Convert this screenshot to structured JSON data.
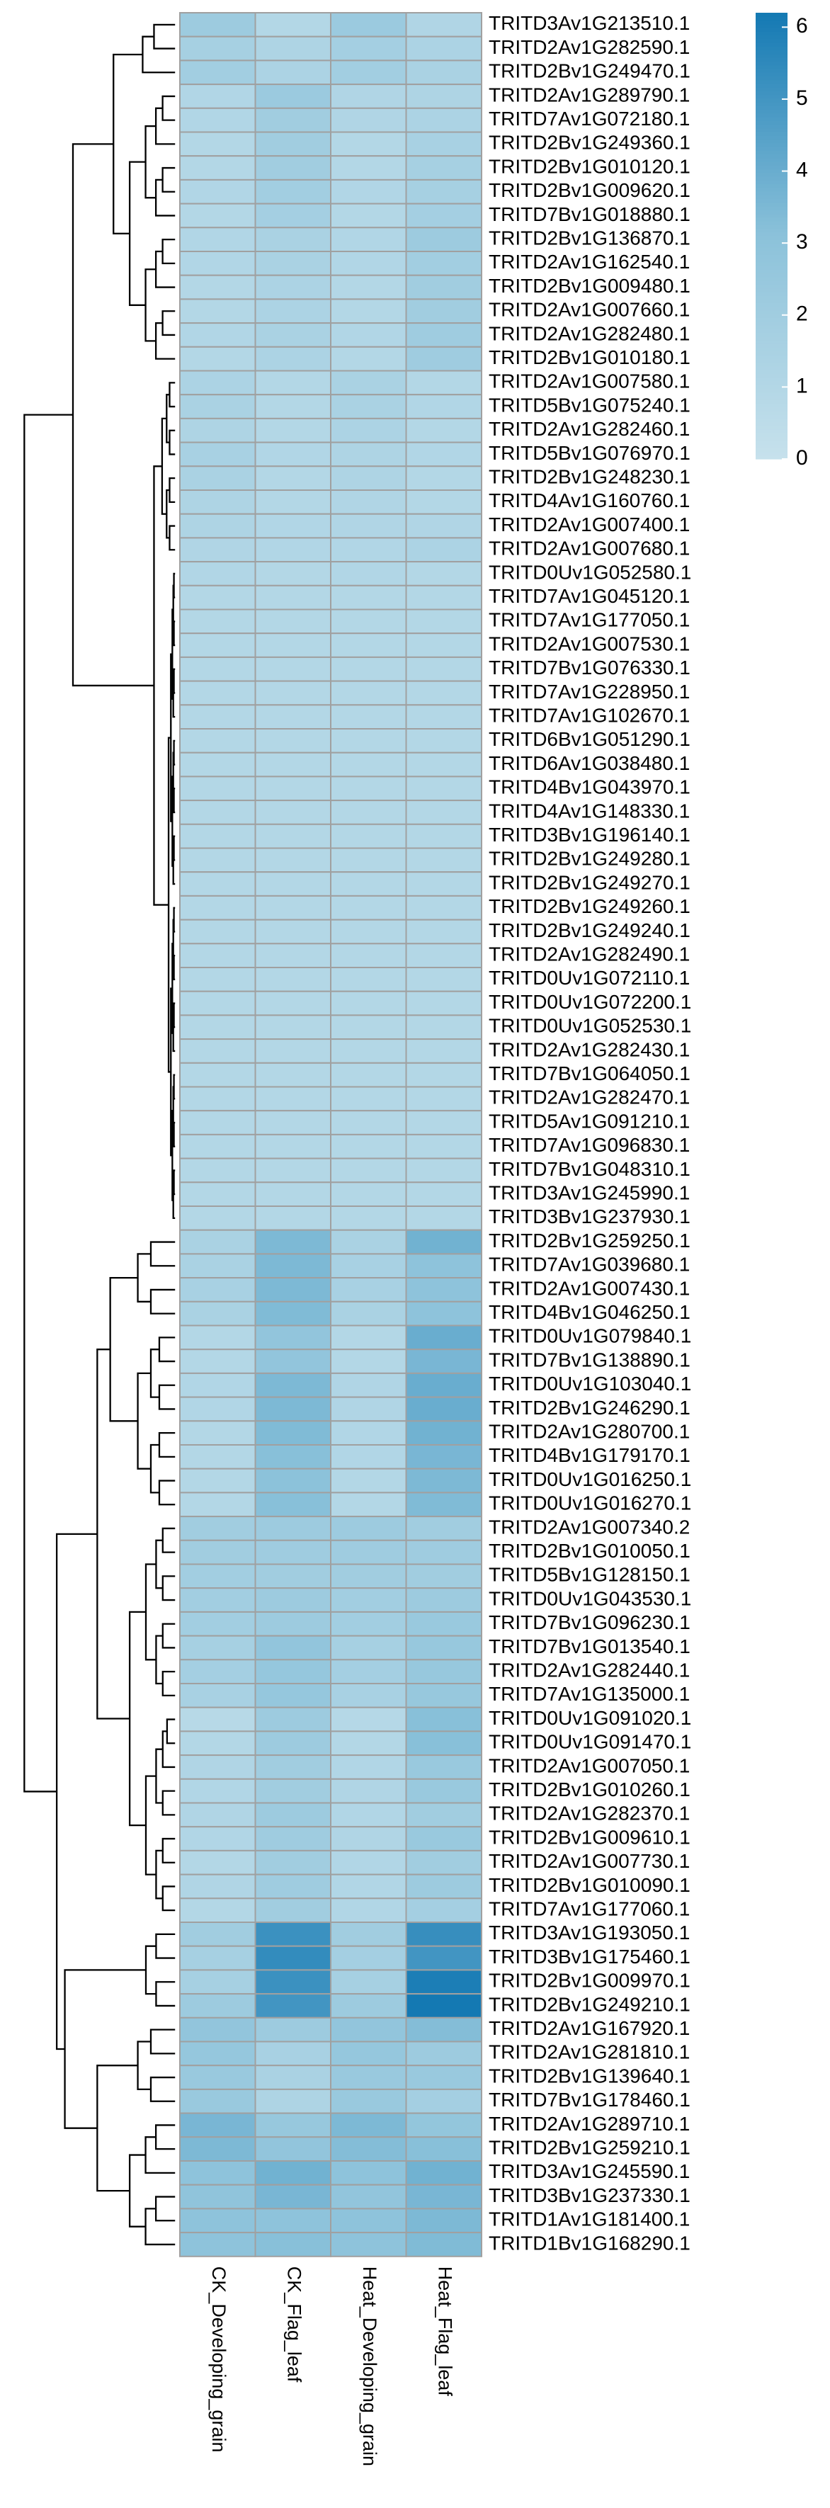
{
  "chart_data": {
    "type": "heatmap",
    "columns": [
      "CK_Developing_grain",
      "CK_Flag_leaf",
      "Heat_Developing_grain",
      "Heat_Flag_leaf"
    ],
    "rows": [
      "TRITD3Av1G213510.1",
      "TRITD2Av1G282590.1",
      "TRITD2Bv1G249470.1",
      "TRITD2Av1G289790.1",
      "TRITD7Av1G072180.1",
      "TRITD2Bv1G249360.1",
      "TRITD2Bv1G010120.1",
      "TRITD2Bv1G009620.1",
      "TRITD7Bv1G018880.1",
      "TRITD2Bv1G136870.1",
      "TRITD2Av1G162540.1",
      "TRITD2Bv1G009480.1",
      "TRITD2Av1G007660.1",
      "TRITD2Av1G282480.1",
      "TRITD2Bv1G010180.1",
      "TRITD2Av1G007580.1",
      "TRITD5Bv1G075240.1",
      "TRITD2Av1G282460.1",
      "TRITD5Bv1G076970.1",
      "TRITD2Bv1G248230.1",
      "TRITD4Av1G160760.1",
      "TRITD2Av1G007400.1",
      "TRITD2Av1G007680.1",
      "TRITD0Uv1G052580.1",
      "TRITD7Av1G045120.1",
      "TRITD7Av1G177050.1",
      "TRITD2Av1G007530.1",
      "TRITD7Bv1G076330.1",
      "TRITD7Av1G228950.1",
      "TRITD7Av1G102670.1",
      "TRITD6Bv1G051290.1",
      "TRITD6Av1G038480.1",
      "TRITD4Bv1G043970.1",
      "TRITD4Av1G148330.1",
      "TRITD3Bv1G196140.1",
      "TRITD2Bv1G249280.1",
      "TRITD2Bv1G249270.1",
      "TRITD2Bv1G249260.1",
      "TRITD2Bv1G249240.1",
      "TRITD2Av1G282490.1",
      "TRITD0Uv1G072110.1",
      "TRITD0Uv1G072200.1",
      "TRITD0Uv1G052530.1",
      "TRITD2Av1G282430.1",
      "TRITD7Bv1G064050.1",
      "TRITD2Av1G282470.1",
      "TRITD5Av1G091210.1",
      "TRITD7Av1G096830.1",
      "TRITD7Bv1G048310.1",
      "TRITD3Av1G245990.1",
      "TRITD3Bv1G237930.1",
      "TRITD2Bv1G259250.1",
      "TRITD7Av1G039680.1",
      "TRITD2Av1G007430.1",
      "TRITD4Bv1G046250.1",
      "TRITD0Uv1G079840.1",
      "TRITD7Bv1G138890.1",
      "TRITD0Uv1G103040.1",
      "TRITD2Bv1G246290.1",
      "TRITD2Av1G280700.1",
      "TRITD4Bv1G179170.1",
      "TRITD0Uv1G016250.1",
      "TRITD0Uv1G016270.1",
      "TRITD2Av1G007340.2",
      "TRITD2Bv1G010050.1",
      "TRITD5Bv1G128150.1",
      "TRITD0Uv1G043530.1",
      "TRITD7Bv1G096230.1",
      "TRITD7Bv1G013540.1",
      "TRITD2Av1G282440.1",
      "TRITD7Av1G135000.1",
      "TRITD0Uv1G091020.1",
      "TRITD0Uv1G091470.1",
      "TRITD2Av1G007050.1",
      "TRITD2Bv1G010260.1",
      "TRITD2Av1G282370.1",
      "TRITD2Bv1G009610.1",
      "TRITD2Av1G007730.1",
      "TRITD2Bv1G010090.1",
      "TRITD7Av1G177060.1",
      "TRITD3Av1G193050.1",
      "TRITD3Bv1G175460.1",
      "TRITD2Bv1G009970.1",
      "TRITD2Bv1G249210.1",
      "TRITD2Av1G167920.1",
      "TRITD2Av1G281810.1",
      "TRITD2Bv1G139640.1",
      "TRITD7Bv1G178460.1",
      "TRITD2Av1G289710.1",
      "TRITD2Bv1G259210.1",
      "TRITD3Av1G245590.1",
      "TRITD3Bv1G237330.1",
      "TRITD1Av1G181400.1",
      "TRITD1Bv1G168290.1"
    ],
    "values": [
      [
        2.2,
        1.0,
        2.3,
        1.2
      ],
      [
        1.7,
        1.3,
        1.8,
        1.4
      ],
      [
        1.9,
        1.4,
        1.9,
        1.5
      ],
      [
        1.1,
        2.3,
        1.2,
        1.3
      ],
      [
        1.1,
        2.0,
        1.2,
        1.4
      ],
      [
        1.0,
        2.0,
        1.0,
        1.6
      ],
      [
        1.0,
        2.0,
        1.0,
        1.7
      ],
      [
        1.1,
        1.9,
        1.1,
        1.7
      ],
      [
        1.0,
        1.8,
        1.0,
        1.8
      ],
      [
        1.1,
        1.5,
        1.1,
        2.2
      ],
      [
        1.1,
        1.5,
        1.1,
        1.9
      ],
      [
        1.0,
        1.4,
        1.0,
        2.0
      ],
      [
        1.0,
        1.4,
        1.0,
        2.0
      ],
      [
        1.1,
        1.5,
        1.1,
        2.1
      ],
      [
        1.0,
        1.4,
        1.0,
        2.1
      ],
      [
        1.4,
        1.0,
        1.5,
        1.0
      ],
      [
        1.5,
        1.0,
        1.5,
        1.1
      ],
      [
        1.3,
        1.0,
        1.4,
        1.0
      ],
      [
        1.6,
        1.1,
        1.3,
        1.1
      ],
      [
        1.5,
        1.0,
        1.3,
        1.0
      ],
      [
        1.3,
        1.0,
        1.2,
        1.0
      ],
      [
        1.3,
        1.1,
        1.2,
        1.2
      ],
      [
        1.2,
        1.1,
        1.1,
        1.4
      ],
      [
        1.1,
        1.0,
        1.1,
        1.0
      ],
      [
        1.0,
        1.0,
        1.0,
        1.0
      ],
      [
        1.0,
        1.0,
        1.0,
        1.0
      ],
      [
        1.0,
        1.0,
        1.0,
        1.0
      ],
      [
        1.0,
        1.0,
        1.0,
        1.0
      ],
      [
        1.0,
        1.0,
        1.0,
        1.0
      ],
      [
        1.0,
        1.0,
        1.0,
        1.0
      ],
      [
        1.0,
        1.0,
        1.0,
        1.0
      ],
      [
        1.0,
        1.0,
        1.0,
        1.0
      ],
      [
        1.0,
        1.0,
        1.0,
        1.0
      ],
      [
        1.0,
        1.0,
        1.0,
        1.0
      ],
      [
        1.0,
        1.0,
        1.0,
        1.0
      ],
      [
        1.0,
        1.0,
        1.0,
        1.0
      ],
      [
        1.0,
        1.0,
        1.0,
        1.0
      ],
      [
        1.0,
        1.0,
        1.0,
        1.0
      ],
      [
        1.0,
        1.0,
        1.0,
        1.0
      ],
      [
        1.0,
        1.0,
        1.0,
        1.0
      ],
      [
        1.0,
        1.0,
        1.0,
        1.0
      ],
      [
        1.0,
        1.0,
        1.0,
        1.0
      ],
      [
        1.0,
        1.0,
        1.0,
        1.0
      ],
      [
        1.0,
        1.0,
        1.0,
        1.0
      ],
      [
        1.0,
        1.0,
        1.0,
        1.0
      ],
      [
        1.0,
        1.0,
        1.0,
        1.0
      ],
      [
        1.0,
        1.0,
        1.0,
        1.0
      ],
      [
        1.0,
        1.0,
        1.0,
        1.0
      ],
      [
        1.0,
        1.0,
        1.0,
        1.0
      ],
      [
        1.0,
        1.0,
        1.0,
        1.0
      ],
      [
        1.0,
        1.0,
        1.0,
        1.0
      ],
      [
        1.5,
        3.5,
        1.5,
        3.8
      ],
      [
        1.5,
        3.5,
        1.6,
        3.0
      ],
      [
        1.6,
        3.5,
        1.6,
        3.0
      ],
      [
        1.5,
        3.4,
        1.5,
        3.0
      ],
      [
        1.0,
        2.8,
        1.0,
        4.0
      ],
      [
        1.0,
        2.8,
        1.0,
        3.6
      ],
      [
        1.1,
        3.5,
        1.2,
        4.0
      ],
      [
        1.1,
        3.5,
        1.2,
        4.0
      ],
      [
        1.0,
        3.4,
        1.1,
        3.8
      ],
      [
        1.0,
        3.2,
        1.1,
        3.6
      ],
      [
        1.0,
        3.1,
        1.0,
        3.5
      ],
      [
        1.0,
        3.2,
        1.0,
        3.4
      ],
      [
        2.0,
        2.2,
        2.2,
        2.0
      ],
      [
        2.0,
        2.1,
        2.1,
        2.1
      ],
      [
        1.9,
        2.0,
        2.0,
        2.0
      ],
      [
        1.9,
        2.2,
        1.9,
        2.2
      ],
      [
        1.9,
        2.2,
        1.9,
        2.4
      ],
      [
        1.7,
        2.8,
        1.7,
        2.5
      ],
      [
        1.8,
        2.6,
        1.8,
        2.5
      ],
      [
        1.6,
        2.6,
        1.6,
        2.5
      ],
      [
        0.8,
        2.2,
        0.9,
        3.2
      ],
      [
        1.0,
        2.2,
        1.0,
        3.2
      ],
      [
        1.2,
        2.0,
        1.1,
        2.4
      ],
      [
        1.1,
        2.0,
        1.2,
        2.4
      ],
      [
        1.2,
        2.2,
        1.1,
        2.0
      ],
      [
        1.1,
        2.1,
        1.2,
        2.4
      ],
      [
        1.0,
        2.0,
        1.1,
        2.0
      ],
      [
        1.2,
        2.1,
        1.1,
        2.2
      ],
      [
        1.0,
        2.0,
        1.1,
        1.8
      ],
      [
        2.0,
        5.2,
        2.0,
        5.3
      ],
      [
        1.7,
        5.4,
        1.8,
        5.0
      ],
      [
        1.7,
        5.2,
        1.7,
        6.0
      ],
      [
        2.2,
        5.0,
        2.2,
        6.2
      ],
      [
        2.8,
        2.2,
        2.8,
        3.3
      ],
      [
        2.6,
        1.6,
        2.6,
        2.2
      ],
      [
        2.4,
        1.5,
        2.4,
        2.4
      ],
      [
        2.4,
        1.3,
        2.4,
        1.8
      ],
      [
        3.6,
        2.5,
        3.5,
        2.7
      ],
      [
        3.5,
        2.8,
        3.3,
        3.2
      ],
      [
        3.0,
        3.8,
        3.0,
        3.8
      ],
      [
        2.9,
        3.6,
        2.8,
        3.6
      ],
      [
        3.0,
        3.0,
        3.0,
        3.5
      ],
      [
        3.0,
        3.2,
        3.0,
        3.4
      ]
    ],
    "colorlim": [
      0,
      6.2
    ],
    "colorbar_ticks": [
      0,
      1,
      2,
      3,
      4,
      5,
      6
    ],
    "colors": [
      "#c6e1ec",
      "#8cc2da",
      "#1479b3"
    ]
  }
}
